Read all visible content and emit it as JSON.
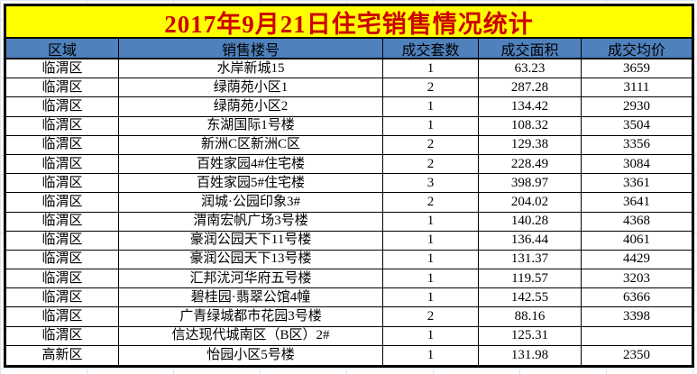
{
  "title": "2017年9月21日住宅销售情况统计",
  "colors": {
    "title_bg": "#ffff00",
    "title_text": "#cc0000",
    "header_bg": "#4f81bd",
    "border": "#000000"
  },
  "table": {
    "headers": [
      "区域",
      "销售楼号",
      "成交套数",
      "成交面积",
      "成交均价"
    ],
    "rows": [
      {
        "region": "临渭区",
        "building": "水岸新城15",
        "units": "1",
        "area": "63.23",
        "avg_price": "3659"
      },
      {
        "region": "临渭区",
        "building": "绿荫苑小区1",
        "units": "2",
        "area": "287.28",
        "avg_price": "3111"
      },
      {
        "region": "临渭区",
        "building": "绿荫苑小区2",
        "units": "1",
        "area": "134.42",
        "avg_price": "2930"
      },
      {
        "region": "临渭区",
        "building": "东湖国际1号楼",
        "units": "1",
        "area": "108.32",
        "avg_price": "3504"
      },
      {
        "region": "临渭区",
        "building": "新洲C区新洲C区",
        "units": "2",
        "area": "129.38",
        "avg_price": "3356"
      },
      {
        "region": "临渭区",
        "building": "百姓家园4#住宅楼",
        "units": "2",
        "area": "228.49",
        "avg_price": "3084"
      },
      {
        "region": "临渭区",
        "building": "百姓家园5#住宅楼",
        "units": "3",
        "area": "398.97",
        "avg_price": "3361"
      },
      {
        "region": "临渭区",
        "building": "润城·公园印象3#",
        "units": "2",
        "area": "204.02",
        "avg_price": "3641"
      },
      {
        "region": "临渭区",
        "building": "渭南宏帆广场3号楼",
        "units": "1",
        "area": "140.28",
        "avg_price": "4368"
      },
      {
        "region": "临渭区",
        "building": "豪润公园天下11号楼",
        "units": "1",
        "area": "136.44",
        "avg_price": "4061"
      },
      {
        "region": "临渭区",
        "building": "豪润公园天下13号楼",
        "units": "1",
        "area": "131.37",
        "avg_price": "4429"
      },
      {
        "region": "临渭区",
        "building": "汇邦沋河华府五号楼",
        "units": "1",
        "area": "119.57",
        "avg_price": "3203"
      },
      {
        "region": "临渭区",
        "building": "碧桂园·翡翠公馆4幢",
        "units": "1",
        "area": "142.55",
        "avg_price": "6366"
      },
      {
        "region": "临渭区",
        "building": "广青绿城都市花园3号楼",
        "units": "2",
        "area": "88.16",
        "avg_price": "3398"
      },
      {
        "region": "临渭区",
        "building": "信达现代城南区（B区）2#",
        "units": "1",
        "area": "125.31",
        "avg_price": ""
      },
      {
        "region": "高新区",
        "building": "怡园小区5号楼",
        "units": "1",
        "area": "131.98",
        "avg_price": "2350"
      }
    ]
  }
}
